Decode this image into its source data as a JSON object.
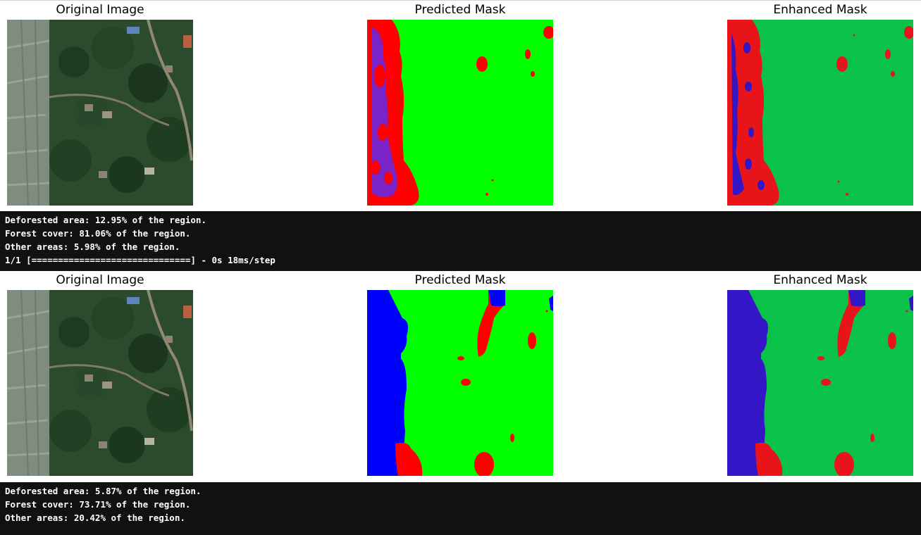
{
  "colors": {
    "forest_predicted": "#00ff00",
    "forest_enhanced": "#0ac24a",
    "deforested": "#ff0000",
    "other_predicted": "#0000ff",
    "other_enhanced": "#3516c6",
    "console_background": "#111111"
  },
  "figures": [
    {
      "titles": {
        "original": "Original Image",
        "predicted": "Predicted Mask",
        "enhanced": "Enhanced Mask"
      },
      "output": [
        "Deforested area: 12.95% of the region.",
        "Forest cover: 81.06% of the region.",
        "Other areas: 5.98% of the region.",
        "1/1 [==============================] - 0s 18ms/step"
      ]
    },
    {
      "titles": {
        "original": "Original Image",
        "predicted": "Predicted Mask",
        "enhanced": "Enhanced Mask"
      },
      "output": [
        "Deforested area: 5.87% of the region.",
        "Forest cover: 73.71% of the region.",
        "Other areas: 20.42% of the region."
      ]
    }
  ]
}
